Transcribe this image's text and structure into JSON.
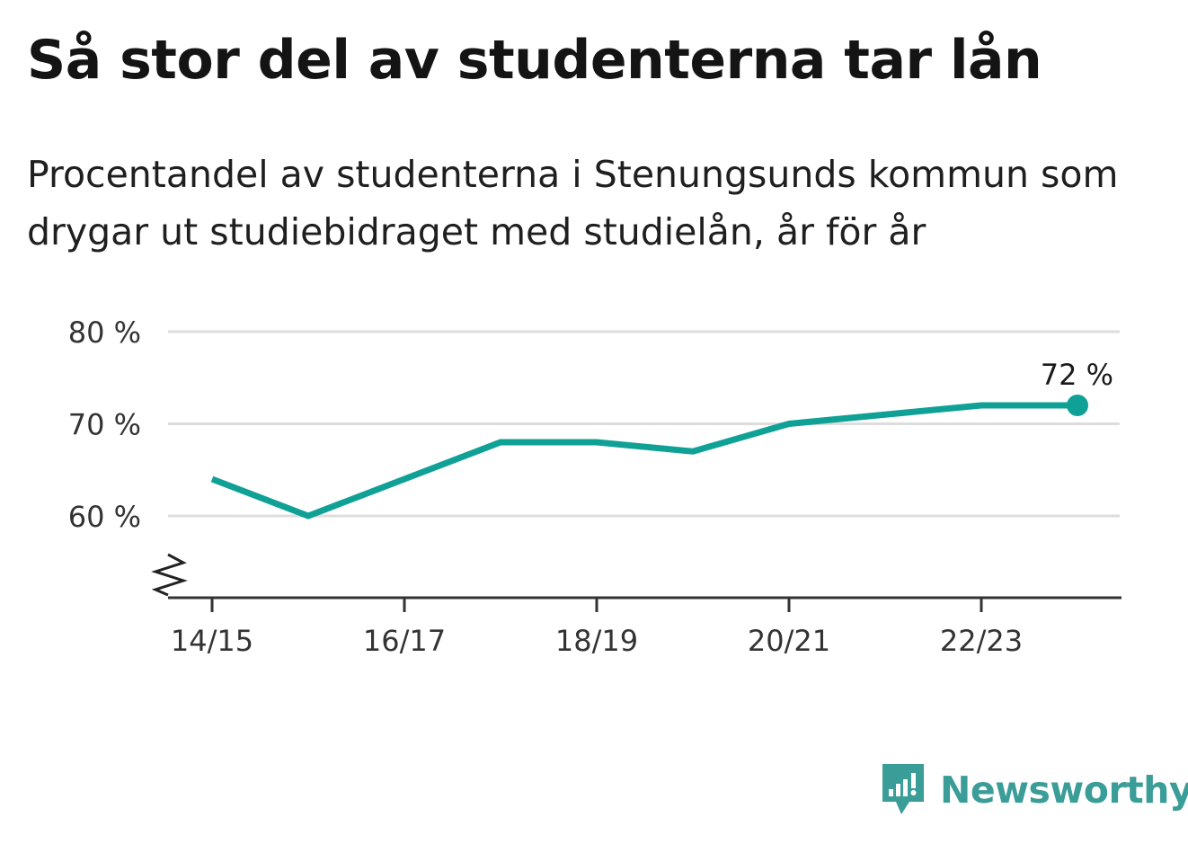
{
  "header": {
    "title": "Så stor del av studenterna tar lån",
    "subtitle": "Procentandel av studenterna i Stenungsunds kommun som drygar ut studiebidraget med studielån, år för år"
  },
  "brand": {
    "name": "Newsworthy",
    "icon": "newsworthy-logo-icon",
    "color": "#3b9d98"
  },
  "chart_data": {
    "type": "line",
    "categories": [
      "14/15",
      "15/16",
      "16/17",
      "17/18",
      "18/19",
      "19/20",
      "20/21",
      "21/22",
      "22/23",
      "23/24"
    ],
    "x_tick_labels": [
      "14/15",
      "16/17",
      "18/19",
      "20/21",
      "22/23"
    ],
    "series": [
      {
        "values": [
          64,
          60,
          64,
          68,
          68,
          67,
          70,
          71,
          72,
          72
        ],
        "color": "#10a196"
      }
    ],
    "y_ticks": [
      60,
      70,
      80
    ],
    "y_tick_labels": [
      "60 %",
      "70 %",
      "80 %"
    ],
    "ylim": [
      51,
      80
    ],
    "y_axis_break": true,
    "grid": true,
    "end_label": "72 %",
    "title": "",
    "xlabel": "",
    "ylabel": ""
  }
}
